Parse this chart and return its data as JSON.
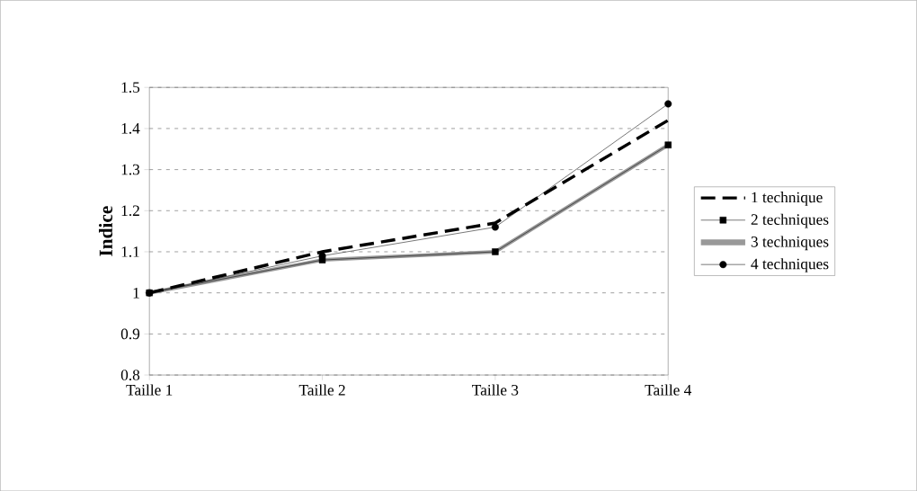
{
  "chart_data": {
    "type": "line",
    "ylabel": "Indice",
    "categories": [
      "Taille 1",
      "Taille 2",
      "Taille 3",
      "Taille 4"
    ],
    "series": [
      {
        "name": "1 technique",
        "color": "#000000",
        "line_style": "dashed",
        "marker": "none",
        "values": [
          1.0,
          1.1,
          1.17,
          1.42
        ]
      },
      {
        "name": "2 techniques",
        "color": "#000000",
        "line_style": "solid",
        "marker": "square",
        "values": [
          1.0,
          1.08,
          1.1,
          1.36
        ]
      },
      {
        "name": "3 techniques",
        "color": "#999999",
        "line_style": "solid",
        "marker": "none",
        "values": [
          1.0,
          1.08,
          1.1,
          1.36
        ]
      },
      {
        "name": "4 techniques",
        "color": "#000000",
        "line_style": "solid",
        "marker": "circle",
        "values": [
          1.0,
          1.09,
          1.16,
          1.46
        ]
      }
    ],
    "ylim": [
      0.8,
      1.5
    ],
    "yticks": [
      0.8,
      0.9,
      1,
      1.1,
      1.2,
      1.3,
      1.4,
      1.5
    ],
    "grid": "y",
    "legend": "right"
  }
}
